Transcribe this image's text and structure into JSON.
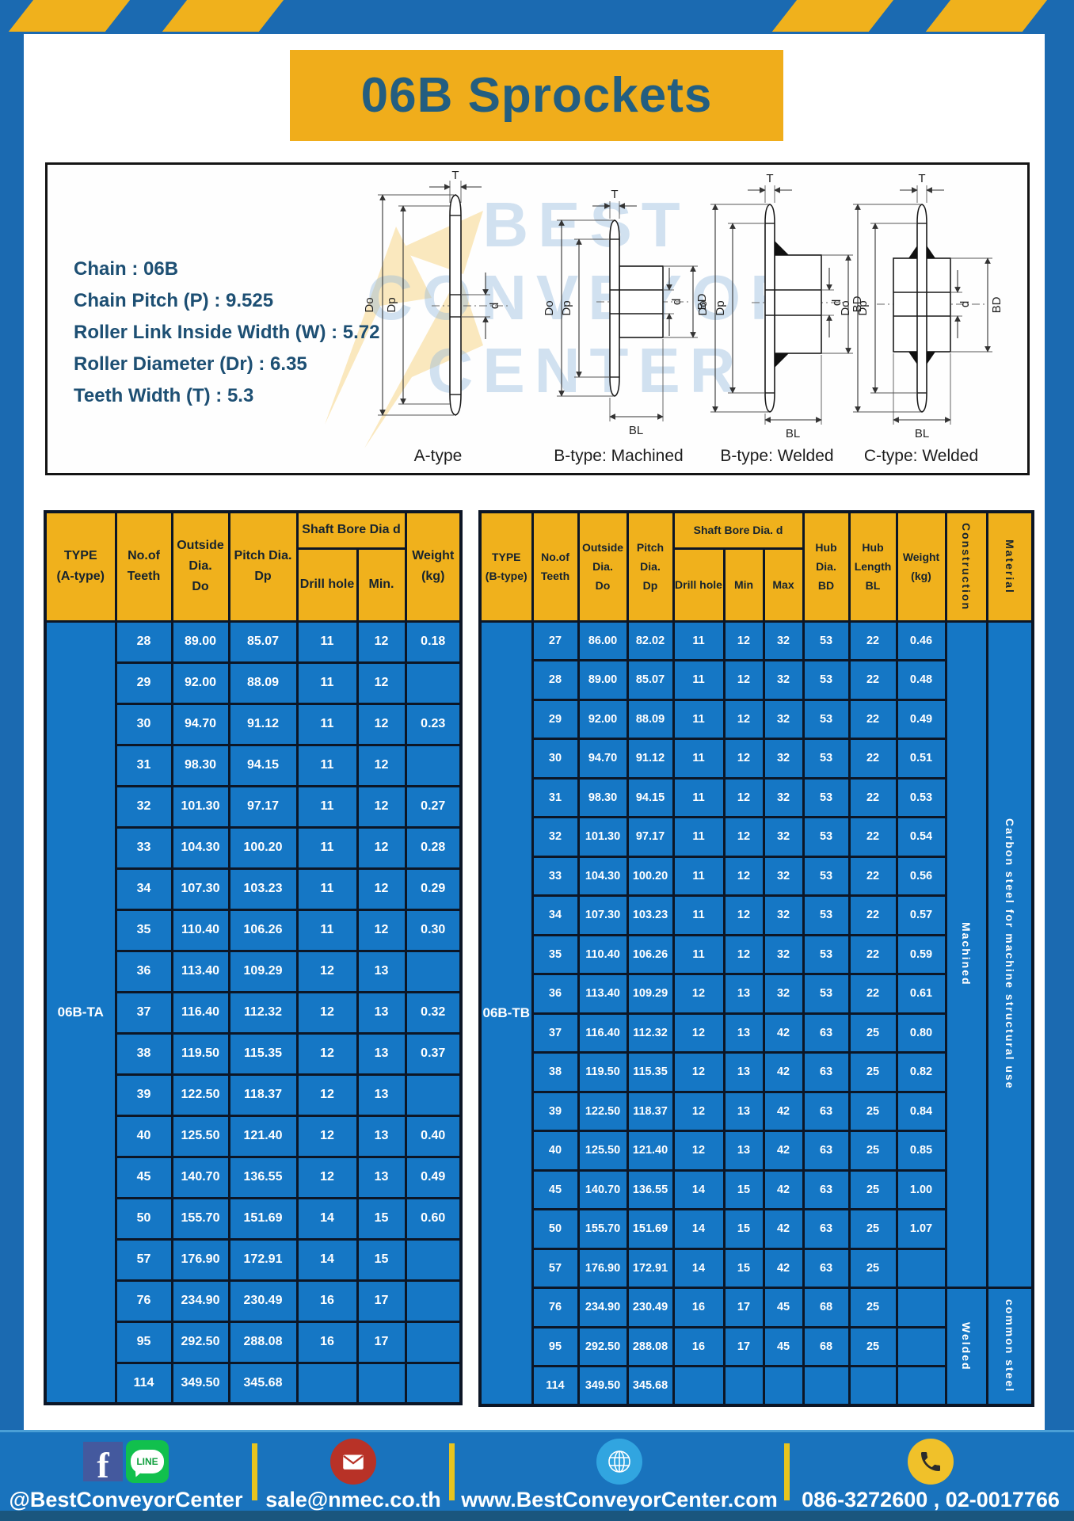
{
  "palette": {
    "frame_blue": "#1b6ab1",
    "accent_yellow": "#f0b11c",
    "title_yellow": "#f0ad1b",
    "title_text": "#235e80",
    "cell_blue": "#1577c5",
    "table_border": "#0c1626",
    "footer_blue": "#1973bd",
    "footer_strip": "#1a567e"
  },
  "title": "06B Sprockets",
  "specs": [
    "Chain : 06B",
    "Chain Pitch (P) : 9.525",
    "Roller Link Inside Width (W) : 5.72",
    "Roller Diameter (Dr) : 6.35",
    "Teeth Width (T) : 5.3"
  ],
  "watermark": [
    "BEST",
    "CONVEYOR",
    "CENTER"
  ],
  "diagram": {
    "captions": [
      "A-type",
      "B-type: Machined",
      "B-type: Welded",
      "C-type: Welded"
    ],
    "dims": {
      "t": "T",
      "outside": "Do",
      "pitch": "Dp",
      "bore": "d",
      "hub_dia": "BD",
      "hub_len": "BL"
    }
  },
  "tables": {
    "a": {
      "type_label": "06B-TA",
      "headers": {
        "type": "TYPE\n(A-type)",
        "teeth": "No.of\nTeeth",
        "outside": "Outside\nDia.\nDo",
        "pitch": "Pitch Dia.\nDp",
        "shaft_group": "Shaft Bore Dia d",
        "drill": "Drill hole",
        "min": "Min.",
        "weight": "Weight\n(kg)"
      },
      "rows": [
        [
          "28",
          "89.00",
          "85.07",
          "11",
          "12",
          "0.18"
        ],
        [
          "29",
          "92.00",
          "88.09",
          "11",
          "12",
          ""
        ],
        [
          "30",
          "94.70",
          "91.12",
          "11",
          "12",
          "0.23"
        ],
        [
          "31",
          "98.30",
          "94.15",
          "11",
          "12",
          ""
        ],
        [
          "32",
          "101.30",
          "97.17",
          "11",
          "12",
          "0.27"
        ],
        [
          "33",
          "104.30",
          "100.20",
          "11",
          "12",
          "0.28"
        ],
        [
          "34",
          "107.30",
          "103.23",
          "11",
          "12",
          "0.29"
        ],
        [
          "35",
          "110.40",
          "106.26",
          "11",
          "12",
          "0.30"
        ],
        [
          "36",
          "113.40",
          "109.29",
          "12",
          "13",
          ""
        ],
        [
          "37",
          "116.40",
          "112.32",
          "12",
          "13",
          "0.32"
        ],
        [
          "38",
          "119.50",
          "115.35",
          "12",
          "13",
          "0.37"
        ],
        [
          "39",
          "122.50",
          "118.37",
          "12",
          "13",
          ""
        ],
        [
          "40",
          "125.50",
          "121.40",
          "12",
          "13",
          "0.40"
        ],
        [
          "45",
          "140.70",
          "136.55",
          "12",
          "13",
          "0.49"
        ],
        [
          "50",
          "155.70",
          "151.69",
          "14",
          "15",
          "0.60"
        ],
        [
          "57",
          "176.90",
          "172.91",
          "14",
          "15",
          ""
        ],
        [
          "76",
          "234.90",
          "230.49",
          "16",
          "17",
          ""
        ],
        [
          "95",
          "292.50",
          "288.08",
          "16",
          "17",
          ""
        ],
        [
          "114",
          "349.50",
          "345.68",
          "",
          "",
          ""
        ]
      ]
    },
    "b": {
      "type_label": "06B-TB",
      "headers": {
        "type": "TYPE\n(B-type)",
        "teeth": "No.of\nTeeth",
        "outside": "Outside\nDia.\nDo",
        "pitch": "Pitch\nDia.\nDp",
        "shaft_group": "Shaft Bore Dia. d",
        "drill": "Drill hole",
        "min": "Min",
        "max": "Max",
        "hub_dia": "Hub\nDia.\nBD",
        "hub_len": "Hub\nLength\nBL",
        "weight": "Weight\n(kg)",
        "construction": "Construction",
        "material": "Material"
      },
      "rows": [
        [
          "27",
          "86.00",
          "82.02",
          "11",
          "12",
          "32",
          "53",
          "22",
          "0.46"
        ],
        [
          "28",
          "89.00",
          "85.07",
          "11",
          "12",
          "32",
          "53",
          "22",
          "0.48"
        ],
        [
          "29",
          "92.00",
          "88.09",
          "11",
          "12",
          "32",
          "53",
          "22",
          "0.49"
        ],
        [
          "30",
          "94.70",
          "91.12",
          "11",
          "12",
          "32",
          "53",
          "22",
          "0.51"
        ],
        [
          "31",
          "98.30",
          "94.15",
          "11",
          "12",
          "32",
          "53",
          "22",
          "0.53"
        ],
        [
          "32",
          "101.30",
          "97.17",
          "11",
          "12",
          "32",
          "53",
          "22",
          "0.54"
        ],
        [
          "33",
          "104.30",
          "100.20",
          "11",
          "12",
          "32",
          "53",
          "22",
          "0.56"
        ],
        [
          "34",
          "107.30",
          "103.23",
          "11",
          "12",
          "32",
          "53",
          "22",
          "0.57"
        ],
        [
          "35",
          "110.40",
          "106.26",
          "11",
          "12",
          "32",
          "53",
          "22",
          "0.59"
        ],
        [
          "36",
          "113.40",
          "109.29",
          "12",
          "13",
          "32",
          "53",
          "22",
          "0.61"
        ],
        [
          "37",
          "116.40",
          "112.32",
          "12",
          "13",
          "42",
          "63",
          "25",
          "0.80"
        ],
        [
          "38",
          "119.50",
          "115.35",
          "12",
          "13",
          "42",
          "63",
          "25",
          "0.82"
        ],
        [
          "39",
          "122.50",
          "118.37",
          "12",
          "13",
          "42",
          "63",
          "25",
          "0.84"
        ],
        [
          "40",
          "125.50",
          "121.40",
          "12",
          "13",
          "42",
          "63",
          "25",
          "0.85"
        ],
        [
          "45",
          "140.70",
          "136.55",
          "14",
          "15",
          "42",
          "63",
          "25",
          "1.00"
        ],
        [
          "50",
          "155.70",
          "151.69",
          "14",
          "15",
          "42",
          "63",
          "25",
          "1.07"
        ],
        [
          "57",
          "176.90",
          "172.91",
          "14",
          "15",
          "42",
          "63",
          "25",
          ""
        ],
        [
          "76",
          "234.90",
          "230.49",
          "16",
          "17",
          "45",
          "68",
          "25",
          ""
        ],
        [
          "95",
          "292.50",
          "288.08",
          "16",
          "17",
          "45",
          "68",
          "25",
          ""
        ],
        [
          "114",
          "349.50",
          "345.68",
          "",
          "",
          "",
          "",
          "",
          ""
        ]
      ],
      "construction": [
        {
          "label": "Machined",
          "span": 17
        },
        {
          "label": "Welded",
          "span": 3
        }
      ],
      "material": [
        {
          "label": "Carbon steel for machine structural use",
          "span": 17
        },
        {
          "label": "common steel",
          "span": 3
        }
      ]
    }
  },
  "footer": {
    "facebook_glyph": "f",
    "line_label": "LINE",
    "social_handle": "@BestConveyorCenter",
    "email": "sale@nmec.co.th",
    "website": "www.BestConveyorCenter.com",
    "phones": "086-3272600 , 02-0017766"
  }
}
